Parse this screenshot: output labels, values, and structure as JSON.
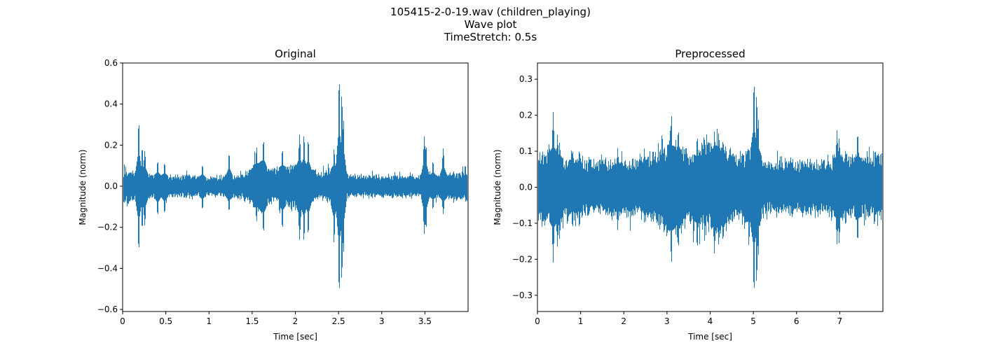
{
  "figure": {
    "title_lines": [
      "105415-2-0-19.wav (children_playing)",
      "Wave plot",
      "TimeStretch: 0.5s"
    ]
  },
  "colors": {
    "wave": "#1f77b4",
    "axes": "#000000",
    "background": "#ffffff"
  },
  "chart_data": [
    {
      "type": "line",
      "title": "Original",
      "xlabel": "Time [sec]",
      "ylabel": "Magnitude (norm)",
      "xlim": [
        0,
        4.0
      ],
      "ylim": [
        -0.61,
        0.6
      ],
      "xticks": [
        0,
        0.5,
        1,
        1.5,
        2,
        2.5,
        3,
        3.5
      ],
      "xtick_labels": [
        "0",
        "0.5",
        "1",
        "1.5",
        "2",
        "2.5",
        "3",
        "3.5"
      ],
      "yticks": [
        -0.6,
        -0.4,
        -0.2,
        0.0,
        0.2,
        0.4,
        0.6
      ],
      "ytick_labels": [
        "−0.6",
        "−0.4",
        "−0.2",
        "0.0",
        "0.2",
        "0.4",
        "0.6"
      ],
      "grid": false,
      "series": [
        {
          "values": "audio waveform samples",
          "baseline_amplitude": 0.055,
          "envelope": [
            [
              0,
              0.08
            ],
            [
              0.2,
              0.06
            ],
            [
              0.5,
              0.05
            ],
            [
              0.8,
              0.05
            ],
            [
              1.0,
              0.04
            ],
            [
              1.2,
              0.05
            ],
            [
              1.4,
              0.06
            ],
            [
              1.5,
              0.1
            ],
            [
              1.6,
              0.12
            ],
            [
              1.7,
              0.08
            ],
            [
              1.8,
              0.09
            ],
            [
              2.0,
              0.1
            ],
            [
              2.1,
              0.09
            ],
            [
              2.3,
              0.06
            ],
            [
              2.5,
              0.1
            ],
            [
              2.6,
              0.05
            ],
            [
              3.0,
              0.05
            ],
            [
              3.3,
              0.05
            ],
            [
              3.6,
              0.05
            ],
            [
              3.8,
              0.06
            ],
            [
              4.0,
              0.07
            ]
          ],
          "peaks": [
            {
              "x": 0.18,
              "max": 0.33,
              "min": -0.33
            },
            {
              "x": 0.22,
              "max": 0.2,
              "min": -0.22
            },
            {
              "x": 0.25,
              "max": 0.18,
              "min": -0.2
            },
            {
              "x": 0.4,
              "max": 0.13,
              "min": -0.15
            },
            {
              "x": 0.48,
              "max": 0.12,
              "min": -0.14
            },
            {
              "x": 0.92,
              "max": 0.11,
              "min": -0.12
            },
            {
              "x": 1.23,
              "max": 0.17,
              "min": -0.13
            },
            {
              "x": 1.55,
              "max": 0.2,
              "min": -0.18
            },
            {
              "x": 1.63,
              "max": 0.24,
              "min": -0.24
            },
            {
              "x": 1.85,
              "max": 0.19,
              "min": -0.22
            },
            {
              "x": 2.05,
              "max": 0.26,
              "min": -0.27
            },
            {
              "x": 2.1,
              "max": 0.26,
              "min": -0.28
            },
            {
              "x": 2.15,
              "max": 0.24,
              "min": -0.25
            },
            {
              "x": 2.45,
              "max": 0.19,
              "min": -0.29
            },
            {
              "x": 2.51,
              "max": 0.55,
              "min": -0.55
            },
            {
              "x": 2.54,
              "max": 0.47,
              "min": -0.48
            },
            {
              "x": 2.56,
              "max": 0.34,
              "min": -0.34
            },
            {
              "x": 3.5,
              "max": 0.25,
              "min": -0.24
            },
            {
              "x": 3.52,
              "max": 0.21,
              "min": -0.22
            },
            {
              "x": 3.6,
              "max": 0.13,
              "min": -0.12
            },
            {
              "x": 3.72,
              "max": 0.19,
              "min": -0.14
            }
          ]
        }
      ]
    },
    {
      "type": "line",
      "title": "Preprocessed",
      "xlabel": "Time [sec]",
      "ylabel": "Magnitude (norm)",
      "xlim": [
        0,
        8.0
      ],
      "ylim": [
        -0.345,
        0.345
      ],
      "xticks": [
        0,
        1,
        2,
        3,
        4,
        5,
        6,
        7
      ],
      "xtick_labels": [
        "0",
        "1",
        "2",
        "3",
        "4",
        "5",
        "6",
        "7"
      ],
      "yticks": [
        -0.3,
        -0.2,
        -0.1,
        0.0,
        0.1,
        0.2,
        0.3
      ],
      "ytick_labels": [
        "−0.3",
        "−0.2",
        "−0.1",
        "0.0",
        "0.1",
        "0.2",
        "0.3"
      ],
      "grid": false,
      "series": [
        {
          "values": "audio waveform samples",
          "baseline_amplitude": 0.07,
          "envelope": [
            [
              0,
              0.09
            ],
            [
              0.4,
              0.1
            ],
            [
              0.6,
              0.08
            ],
            [
              1.0,
              0.07
            ],
            [
              1.5,
              0.07
            ],
            [
              2.0,
              0.07
            ],
            [
              2.5,
              0.08
            ],
            [
              3.0,
              0.12
            ],
            [
              3.3,
              0.11
            ],
            [
              3.6,
              0.09
            ],
            [
              4.0,
              0.12
            ],
            [
              4.3,
              0.11
            ],
            [
              4.6,
              0.08
            ],
            [
              5.0,
              0.11
            ],
            [
              5.3,
              0.07
            ],
            [
              6.0,
              0.07
            ],
            [
              6.6,
              0.07
            ],
            [
              7.0,
              0.08
            ],
            [
              7.5,
              0.08
            ],
            [
              8.0,
              0.09
            ]
          ],
          "peaks": [
            {
              "x": 0.35,
              "max": 0.21,
              "min": -0.21
            },
            {
              "x": 0.45,
              "max": 0.15,
              "min": -0.17
            },
            {
              "x": 0.5,
              "max": 0.13,
              "min": -0.15
            },
            {
              "x": 0.8,
              "max": 0.11,
              "min": -0.12
            },
            {
              "x": 0.96,
              "max": 0.11,
              "min": -0.12
            },
            {
              "x": 1.85,
              "max": 0.11,
              "min": -0.12
            },
            {
              "x": 2.47,
              "max": 0.11,
              "min": -0.1
            },
            {
              "x": 3.1,
              "max": 0.21,
              "min": -0.22
            },
            {
              "x": 3.26,
              "max": 0.17,
              "min": -0.18
            },
            {
              "x": 3.7,
              "max": 0.15,
              "min": -0.18
            },
            {
              "x": 4.1,
              "max": 0.16,
              "min": -0.19
            },
            {
              "x": 4.2,
              "max": 0.16,
              "min": -0.17
            },
            {
              "x": 4.3,
              "max": 0.14,
              "min": -0.16
            },
            {
              "x": 4.9,
              "max": 0.11,
              "min": -0.17
            },
            {
              "x": 5.02,
              "max": 0.31,
              "min": -0.31
            },
            {
              "x": 5.08,
              "max": 0.27,
              "min": -0.28
            },
            {
              "x": 5.12,
              "max": 0.2,
              "min": -0.2
            },
            {
              "x": 6.95,
              "max": 0.16,
              "min": -0.16
            },
            {
              "x": 7.0,
              "max": 0.14,
              "min": -0.16
            },
            {
              "x": 7.15,
              "max": 0.11,
              "min": -0.11
            },
            {
              "x": 7.43,
              "max": 0.16,
              "min": -0.16
            }
          ]
        }
      ]
    }
  ]
}
